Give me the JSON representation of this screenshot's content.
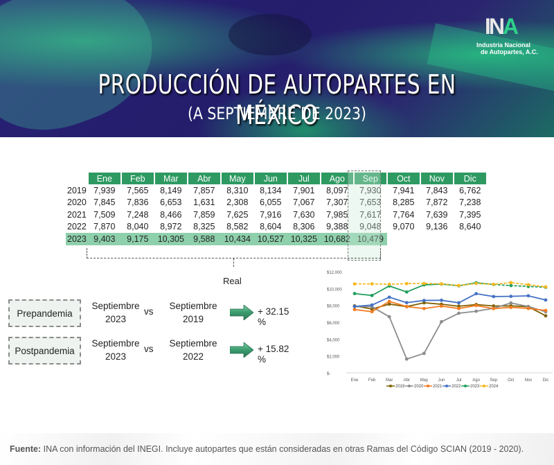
{
  "header": {
    "title": "PRODUCCIÓN DE AUTOPARTES EN MÉXICO",
    "subtitle": "(A SEPTIEMBRE DE 2023)",
    "logo_mark": "INA",
    "logo_line1": "Industria Nacional",
    "logo_line2": "de Autopartes, A.C."
  },
  "table": {
    "months": [
      "Ene",
      "Feb",
      "Mar",
      "Abr",
      "May",
      "Jun",
      "Jul",
      "Ago",
      "Sep",
      "Oct",
      "Nov",
      "Dic"
    ],
    "rows": [
      {
        "year": "2019",
        "values": [
          "7,939",
          "7,565",
          "8,149",
          "7,857",
          "8,310",
          "8,134",
          "7,901",
          "8,097",
          "7,930",
          "7,941",
          "7,843",
          "6,762"
        ]
      },
      {
        "year": "2020",
        "values": [
          "7,845",
          "7,836",
          "6,653",
          "1,631",
          "2,308",
          "6,055",
          "7,067",
          "7,307",
          "7,653",
          "8,285",
          "7,872",
          "7,238"
        ]
      },
      {
        "year": "2021",
        "values": [
          "7,509",
          "7,248",
          "8,466",
          "7,859",
          "7,625",
          "7,916",
          "7,630",
          "7,985",
          "7,617",
          "7,764",
          "7,639",
          "7,395"
        ]
      },
      {
        "year": "2022",
        "values": [
          "7,870",
          "8,040",
          "8,972",
          "8,325",
          "8,582",
          "8,604",
          "8,306",
          "9,388",
          "9,048",
          "9,070",
          "9,136",
          "8,640"
        ]
      },
      {
        "year": "2023",
        "values": [
          "9,403",
          "9,175",
          "10,305",
          "9,588",
          "10,434",
          "10,527",
          "10,325",
          "10,682",
          "10,479",
          "",
          "",
          ""
        ]
      }
    ],
    "highlight_month": "Sep"
  },
  "comparison": {
    "real_label": "Real",
    "rows": [
      {
        "label": "Prepandemia",
        "a_month": "Septiembre",
        "a_year": "2023",
        "vs": "vs",
        "b_month": "Septiembre",
        "b_year": "2019",
        "value": "+ 32.15 %"
      },
      {
        "label": "Postpandemia",
        "a_month": "Septiembre",
        "a_year": "2023",
        "vs": "vs",
        "b_month": "Septiembre",
        "b_year": "2022",
        "value": "+ 15.82 %"
      }
    ]
  },
  "footer": {
    "source_label": "Fuente:",
    "source_text": " INA con información del INEGI. Incluye autopartes que están consideradas en otras Ramas del Código SCIAN (2019 - 2020)."
  },
  "chart_data": {
    "type": "line",
    "title": "",
    "xlabel": "",
    "ylabel": "",
    "categories": [
      "Ene",
      "Feb",
      "Mar",
      "Abr",
      "May",
      "Jun",
      "Jul",
      "Ago",
      "Sep",
      "Oct",
      "Nov",
      "Dic"
    ],
    "y_tick_labels": [
      "$-",
      "$2,000",
      "$4,000",
      "$6,000",
      "$8,000",
      "$10,000",
      "$12,000"
    ],
    "ylim": [
      0,
      12000
    ],
    "grid": false,
    "legend_position": "bottom",
    "series": [
      {
        "name": "2019",
        "color": "#7f6000",
        "dashed": false,
        "values": [
          7939,
          7565,
          8149,
          7857,
          8310,
          8134,
          7901,
          8097,
          7930,
          7941,
          7843,
          6762
        ]
      },
      {
        "name": "2020",
        "color": "#8c8c8c",
        "dashed": false,
        "values": [
          7845,
          7836,
          6653,
          1631,
          2308,
          6055,
          7067,
          7307,
          7653,
          8285,
          7872,
          7238
        ]
      },
      {
        "name": "2021",
        "color": "#f47b20",
        "dashed": false,
        "values": [
          7509,
          7248,
          8466,
          7859,
          7625,
          7916,
          7630,
          7985,
          7617,
          7764,
          7639,
          7395
        ]
      },
      {
        "name": "2022",
        "color": "#4472c4",
        "dashed": false,
        "values": [
          7870,
          8040,
          8972,
          8325,
          8582,
          8604,
          8306,
          9388,
          9048,
          9070,
          9136,
          8640
        ]
      },
      {
        "name": "2023",
        "color": "#1e9e5a",
        "dashed_from_index": 8,
        "values": [
          9403,
          9175,
          10305,
          9588,
          10434,
          10527,
          10325,
          10682,
          10479,
          10350,
          10250,
          10150
        ]
      },
      {
        "name": "2024",
        "color": "#f5b820",
        "dashed": true,
        "values": [
          10550,
          10550,
          10500,
          10580,
          10600,
          10550,
          10350,
          10600,
          10500,
          10700,
          10450,
          10200
        ]
      }
    ]
  }
}
